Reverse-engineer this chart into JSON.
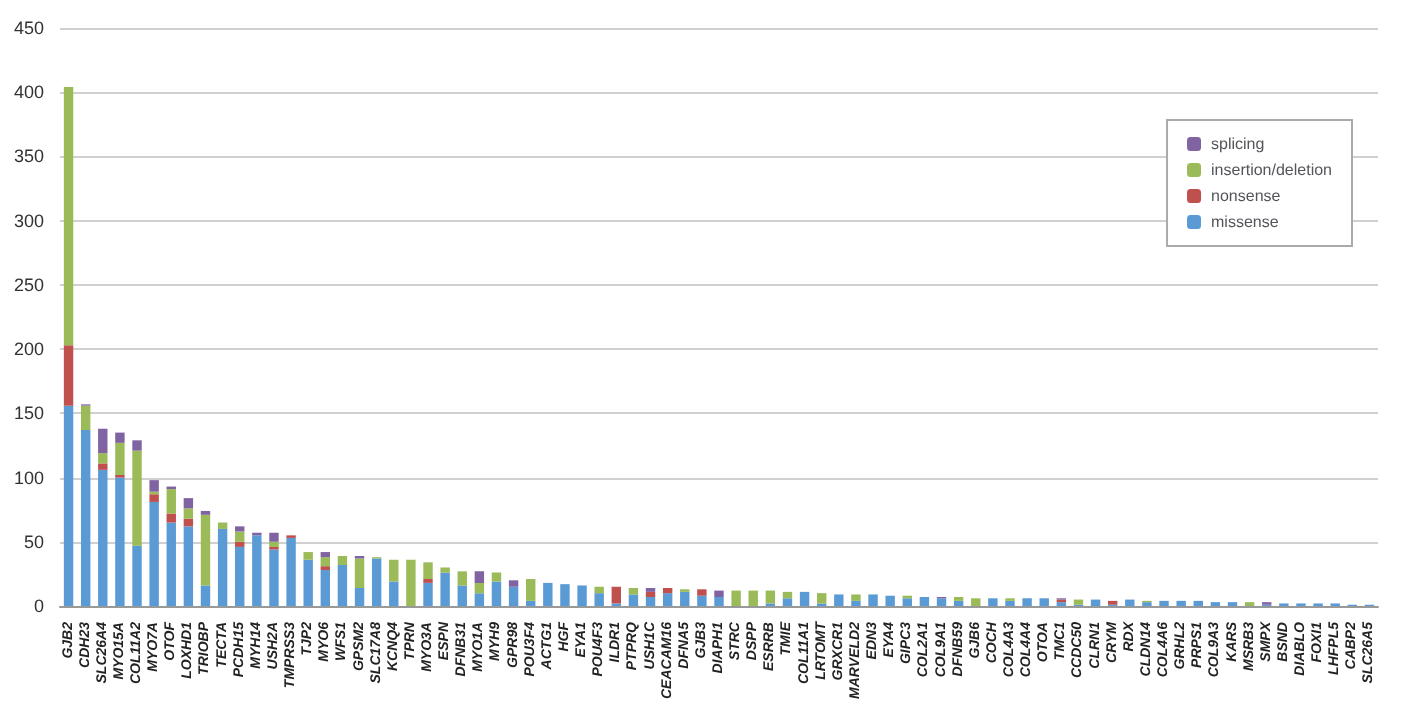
{
  "chart_data": {
    "type": "bar",
    "stacked": true,
    "categories": [
      "GJB2",
      "CDH23",
      "SLC26A4",
      "MYO15A",
      "COL11A2",
      "MYO7A",
      "OTOF",
      "LOXHD1",
      "TRIOBP",
      "TECTA",
      "PCDH15",
      "MYH14",
      "USH2A",
      "TMPRSS3",
      "TJP2",
      "MYO6",
      "WFS1",
      "GPSM2",
      "SLC17A8",
      "KCNQ4",
      "TPRN",
      "MYO3A",
      "ESPN",
      "DFNB31",
      "MYO1A",
      "MYH9",
      "GPR98",
      "POU3F4",
      "ACTG1",
      "HGF",
      "EYA1",
      "POU4F3",
      "ILDR1",
      "PTPRQ",
      "USH1C",
      "CEACAM16",
      "DFNA5",
      "GJB3",
      "DIAPH1",
      "STRC",
      "DSPP",
      "ESRRB",
      "TMIE",
      "COL11A1",
      "LRTOMT",
      "GRXCR1",
      "MARVELD2",
      "EDN3",
      "EYA4",
      "GIPC3",
      "COL2A1",
      "COL9A1",
      "DFNB59",
      "GJB6",
      "COCH",
      "COL4A3",
      "COL4A4",
      "OTOA",
      "TMC1",
      "CCDC50",
      "CLRN1",
      "CRYM",
      "RDX",
      "CLDN14",
      "COL4A6",
      "GRHL2",
      "PRPS1",
      "COL9A3",
      "KARS",
      "MSRB3",
      "SMPX",
      "BSND",
      "DIABLO",
      "FOXI1",
      "LHFPL5",
      "CABP2",
      "SLC26A5"
    ],
    "series": [
      {
        "name": "missense",
        "color": "#5b9bd5",
        "values": [
          156,
          137,
          106,
          100,
          47,
          81,
          65,
          62,
          16,
          60,
          46,
          55,
          44,
          53,
          36,
          28,
          32,
          14,
          37,
          19,
          0,
          18,
          26,
          16,
          10,
          19,
          15,
          4,
          18,
          17,
          16,
          10,
          2,
          9,
          7,
          10,
          11,
          8,
          7,
          0,
          0,
          2,
          6,
          11,
          2,
          9,
          4,
          9,
          8,
          6,
          7,
          6,
          4,
          0,
          6,
          4,
          6,
          6,
          3,
          1,
          5,
          1,
          5,
          3,
          4,
          4,
          4,
          3,
          3,
          0,
          1,
          2,
          2,
          2,
          2,
          1,
          1
        ]
      },
      {
        "name": "nonsense",
        "color": "#c0504d",
        "values": [
          47,
          0,
          5,
          2,
          0,
          6,
          7,
          6,
          0,
          0,
          4,
          0,
          2,
          2,
          0,
          3,
          0,
          0,
          0,
          0,
          0,
          3,
          0,
          0,
          0,
          0,
          0,
          0,
          0,
          0,
          0,
          0,
          13,
          0,
          4,
          4,
          0,
          5,
          0,
          0,
          0,
          0,
          0,
          0,
          0,
          0,
          0,
          0,
          0,
          0,
          0,
          0,
          0,
          0,
          0,
          0,
          0,
          0,
          2,
          0,
          0,
          3,
          0,
          0,
          0,
          0,
          0,
          0,
          0,
          0,
          0,
          0,
          0,
          0,
          0,
          0,
          0
        ]
      },
      {
        "name": "insertion/deletion",
        "color": "#9bbb59",
        "values": [
          201,
          19,
          8,
          25,
          74,
          2,
          19,
          8,
          55,
          5,
          8,
          0,
          4,
          0,
          6,
          7,
          7,
          23,
          1,
          17,
          36,
          13,
          4,
          11,
          8,
          7,
          0,
          17,
          0,
          0,
          0,
          5,
          0,
          5,
          0,
          0,
          2,
          0,
          0,
          12,
          12,
          10,
          5,
          0,
          8,
          0,
          5,
          0,
          0,
          2,
          0,
          0,
          3,
          6,
          0,
          2,
          0,
          0,
          0,
          4,
          0,
          0,
          0,
          1,
          0,
          0,
          0,
          0,
          0,
          3,
          0,
          0,
          0,
          0,
          0,
          0,
          0
        ]
      },
      {
        "name": "splicing",
        "color": "#8064a2",
        "values": [
          0,
          1,
          19,
          8,
          8,
          9,
          2,
          8,
          3,
          0,
          4,
          2,
          7,
          0,
          0,
          4,
          0,
          2,
          0,
          0,
          0,
          0,
          0,
          0,
          9,
          0,
          5,
          0,
          0,
          0,
          0,
          0,
          0,
          0,
          3,
          0,
          0,
          0,
          5,
          0,
          0,
          0,
          0,
          0,
          0,
          0,
          0,
          0,
          0,
          0,
          0,
          1,
          0,
          0,
          0,
          0,
          0,
          0,
          1,
          0,
          0,
          0,
          0,
          0,
          0,
          0,
          0,
          0,
          0,
          0,
          2,
          0,
          0,
          0,
          0,
          0,
          0
        ]
      }
    ],
    "ylim": [
      0,
      450
    ],
    "yticks": [
      0,
      50,
      100,
      150,
      200,
      250,
      300,
      350,
      400,
      450
    ],
    "grid": "y",
    "legend": "top right"
  }
}
